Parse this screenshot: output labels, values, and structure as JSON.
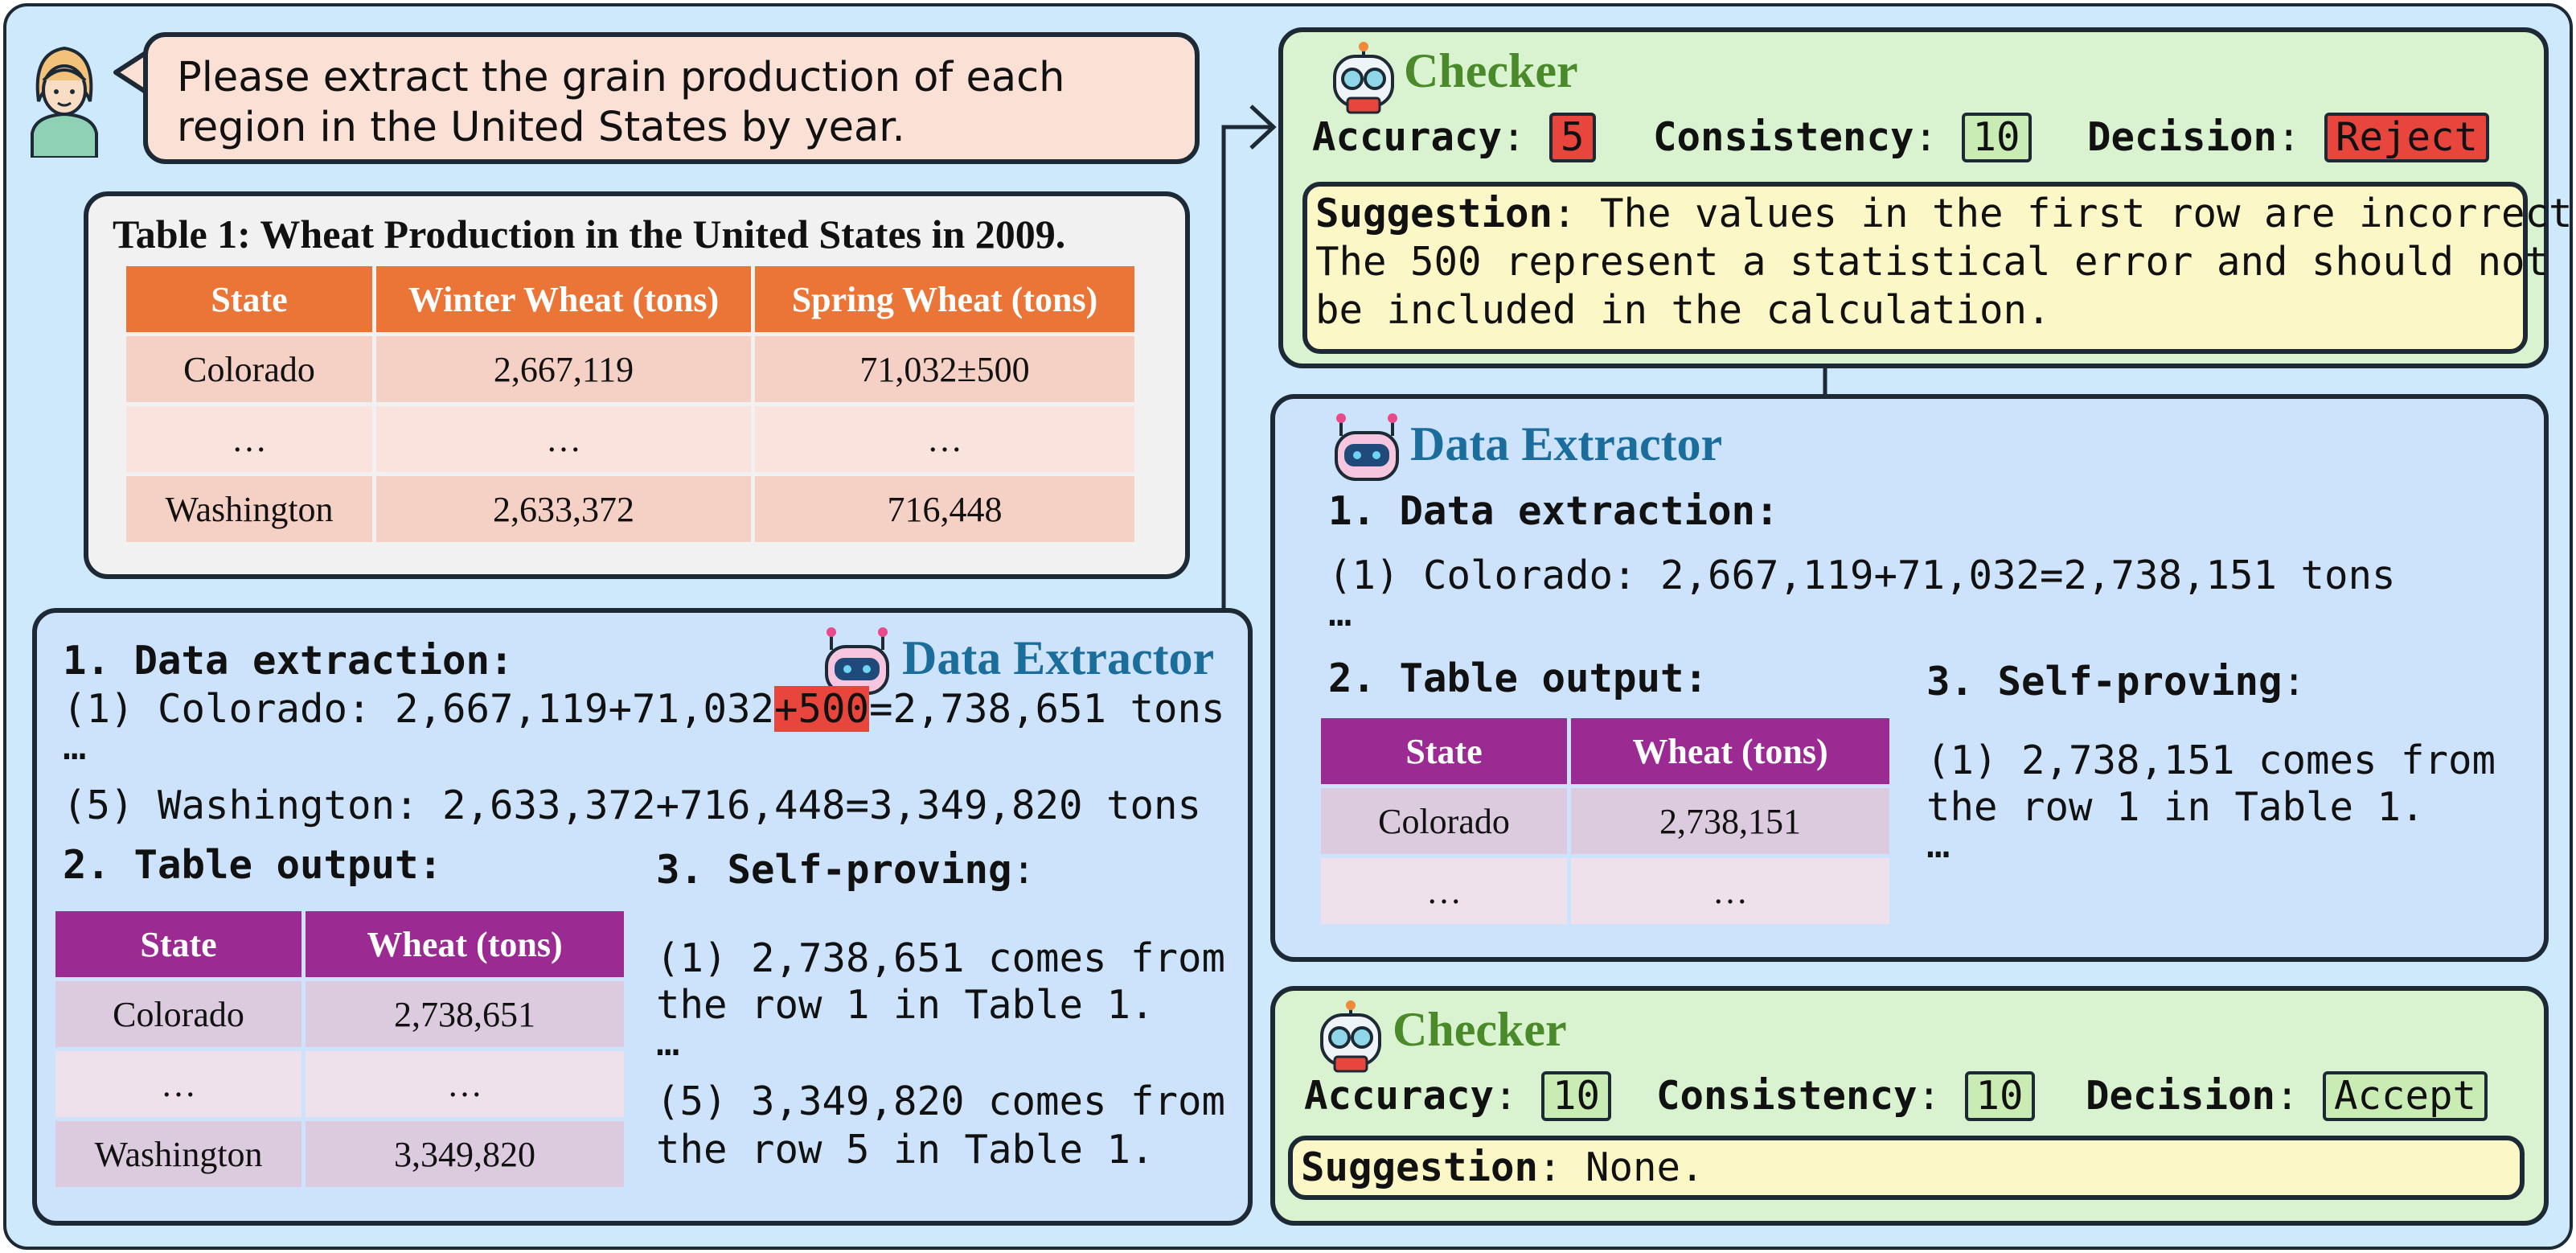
{
  "user_prompt": [
    "Please extract the grain production of each",
    "region in the United States by year."
  ],
  "source_table": {
    "title": "Table 1: Wheat Production in the United States in 2009.",
    "headers": [
      "State",
      "Winter Wheat (tons)",
      "Spring Wheat (tons)"
    ],
    "rows": [
      [
        "Colorado",
        "2,667,119",
        "71,032±500"
      ],
      [
        "…",
        "…",
        "…"
      ],
      [
        "Washington",
        "2,633,372",
        "716,448"
      ]
    ]
  },
  "extractor1": {
    "name": "Data Extractor",
    "section1": "1. Data extraction:",
    "line1_pre": "(1) Colorado: 2,667,119+71,032",
    "line1_err": "+500",
    "line1_post": "=2,738,651 tons",
    "ellipsis": "…",
    "line5": "(5) Washington: 2,633,372+716,448=3,349,820 tons",
    "section2": "2. Table output:",
    "table_headers": [
      "State",
      "Wheat (tons)"
    ],
    "table_rows": [
      [
        "Colorado",
        "2,738,651"
      ],
      [
        "…",
        "…"
      ],
      [
        "Washington",
        "3,349,820"
      ]
    ],
    "section3": "3. Self-proving",
    "proof": [
      "(1) 2,738,651 comes from",
      "the row 1 in Table 1.",
      "…",
      "(5) 3,349,820 comes from",
      "the row 5 in Table 1."
    ]
  },
  "checker1": {
    "name": "Checker",
    "accuracy_label": "Accuracy",
    "accuracy": "5",
    "consistency_label": "Consistency",
    "consistency": "10",
    "decision_label": "Decision",
    "decision": "Reject",
    "suggestion_label": "Suggestion",
    "suggestion": [
      ": The values in the first row are incorrect.",
      "The 500 represent a statistical error and should not",
      "be included in the calculation."
    ]
  },
  "extractor2": {
    "name": "Data Extractor",
    "section1": "1. Data extraction:",
    "line1": "(1) Colorado: 2,667,119+71,032=2,738,151 tons",
    "ellipsis": "…",
    "section2": "2. Table output:",
    "table_headers": [
      "State",
      "Wheat (tons)"
    ],
    "table_rows": [
      [
        "Colorado",
        "2,738,151"
      ],
      [
        "…",
        "…"
      ]
    ],
    "section3": "3. Self-proving",
    "proof": [
      "(1) 2,738,151 comes from",
      "the row 1 in Table 1.",
      "…"
    ]
  },
  "checker2": {
    "name": "Checker",
    "accuracy_label": "Accuracy",
    "accuracy": "10",
    "consistency_label": "Consistency",
    "consistency": "10",
    "decision_label": "Decision",
    "decision": "Accept",
    "suggestion_label": "Suggestion",
    "suggestion": ": None."
  },
  "colors": {
    "background": "#cde9fb",
    "table_header_orange": "#ea7536",
    "table_header_purple": "#9b2b92",
    "error_red": "#e8453c",
    "title_green": "#4a8a2a",
    "title_blue": "#1b6e9c"
  }
}
